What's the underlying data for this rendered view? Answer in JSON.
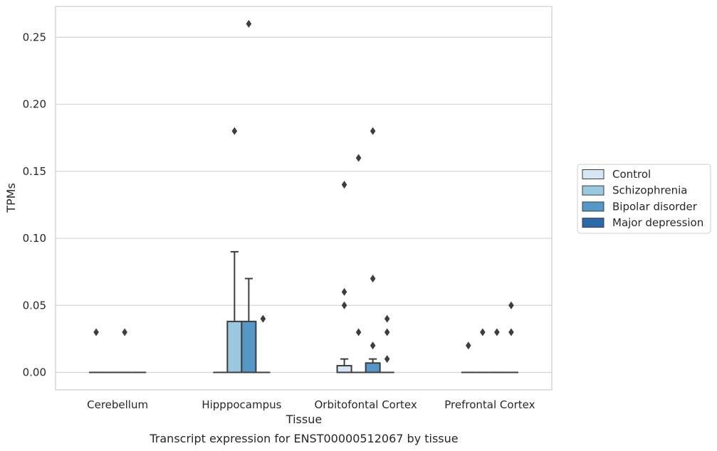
{
  "chart_data": {
    "type": "box",
    "title": "",
    "caption": "Transcript expression for ENST00000512067 by tissue",
    "xlabel": "Tissue",
    "ylabel": "TPMs",
    "ylim": [
      -0.013,
      0.273
    ],
    "yticks": [
      "0.00",
      "0.05",
      "0.10",
      "0.15",
      "0.20",
      "0.25"
    ],
    "ytick_values": [
      0,
      0.05,
      0.1,
      0.15,
      0.2,
      0.25
    ],
    "grid": true,
    "legend_position": "right",
    "categories": [
      "Cerebellum",
      "Hipppocampus",
      "Orbitofontal Cortex",
      "Prefrontal Cortex"
    ],
    "series": [
      {
        "name": "Control",
        "color": "#d6e6f4",
        "boxes": [
          {
            "q1": 0,
            "median": 0,
            "q3": 0,
            "whisker_low": 0,
            "whisker_high": 0,
            "outliers": [
              0.03
            ]
          },
          {
            "q1": 0,
            "median": 0,
            "q3": 0,
            "whisker_low": 0,
            "whisker_high": 0,
            "outliers": []
          },
          {
            "q1": 0,
            "median": 0,
            "q3": 0.005,
            "whisker_low": 0,
            "whisker_high": 0.01,
            "outliers": [
              0.14,
              0.06,
              0.05
            ]
          },
          {
            "q1": 0,
            "median": 0,
            "q3": 0,
            "whisker_low": 0,
            "whisker_high": 0,
            "outliers": [
              0.02
            ]
          }
        ]
      },
      {
        "name": "Schizophrenia",
        "color": "#9ac8e0",
        "boxes": [
          {
            "q1": 0,
            "median": 0,
            "q3": 0,
            "whisker_low": 0,
            "whisker_high": 0,
            "outliers": []
          },
          {
            "q1": 0,
            "median": 0,
            "q3": 0.038,
            "whisker_low": 0,
            "whisker_high": 0.09,
            "outliers": [
              0.18
            ]
          },
          {
            "q1": 0,
            "median": 0,
            "q3": 0,
            "whisker_low": 0,
            "whisker_high": 0,
            "outliers": [
              0.16,
              0.03
            ]
          },
          {
            "q1": 0,
            "median": 0,
            "q3": 0,
            "whisker_low": 0,
            "whisker_high": 0,
            "outliers": [
              0.03
            ]
          }
        ]
      },
      {
        "name": "Bipolar disorder",
        "color": "#5598c8",
        "boxes": [
          {
            "q1": 0,
            "median": 0,
            "q3": 0,
            "whisker_low": 0,
            "whisker_high": 0,
            "outliers": [
              0.03
            ]
          },
          {
            "q1": 0,
            "median": 0,
            "q3": 0.038,
            "whisker_low": 0,
            "whisker_high": 0.07,
            "outliers": [
              0.26
            ]
          },
          {
            "q1": 0,
            "median": 0,
            "q3": 0.007,
            "whisker_low": 0,
            "whisker_high": 0.01,
            "outliers": [
              0.18,
              0.07,
              0.02
            ]
          },
          {
            "q1": 0,
            "median": 0,
            "q3": 0,
            "whisker_low": 0,
            "whisker_high": 0,
            "outliers": [
              0.03
            ]
          }
        ]
      },
      {
        "name": "Major depression",
        "color": "#2a6aa9",
        "boxes": [
          {
            "q1": 0,
            "median": 0,
            "q3": 0,
            "whisker_low": 0,
            "whisker_high": 0,
            "outliers": []
          },
          {
            "q1": 0,
            "median": 0,
            "q3": 0,
            "whisker_low": 0,
            "whisker_high": 0,
            "outliers": [
              0.04
            ]
          },
          {
            "q1": 0,
            "median": 0,
            "q3": 0,
            "whisker_low": 0,
            "whisker_high": 0,
            "outliers": [
              0.04,
              0.03,
              0.01
            ]
          },
          {
            "q1": 0,
            "median": 0,
            "q3": 0,
            "whisker_low": 0,
            "whisker_high": 0,
            "outliers": [
              0.05,
              0.03
            ]
          }
        ]
      }
    ]
  }
}
